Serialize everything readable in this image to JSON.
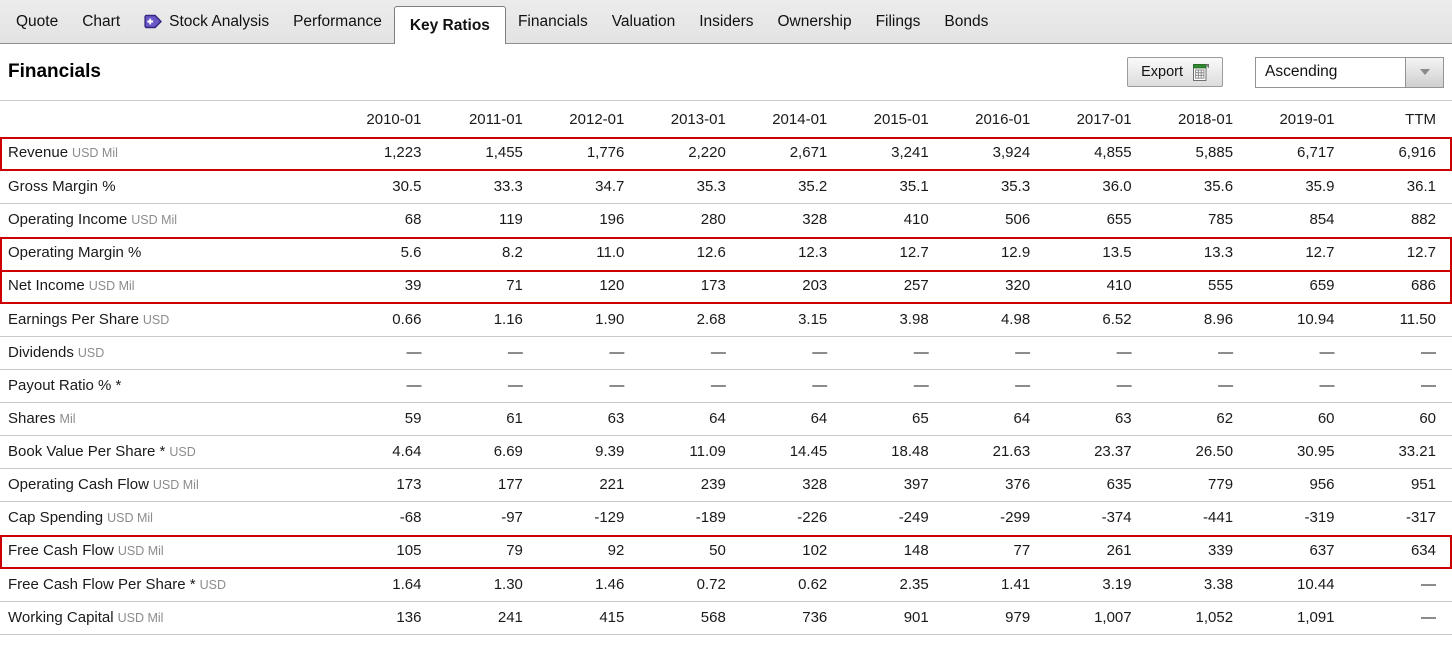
{
  "nav": {
    "tabs": [
      {
        "label": "Quote",
        "active": false
      },
      {
        "label": "Chart",
        "active": false
      },
      {
        "label": "Stock Analysis",
        "active": false,
        "icon": "premium-arrow-icon"
      },
      {
        "label": "Performance",
        "active": false
      },
      {
        "label": "Key Ratios",
        "active": true
      },
      {
        "label": "Financials",
        "active": false
      },
      {
        "label": "Valuation",
        "active": false
      },
      {
        "label": "Insiders",
        "active": false
      },
      {
        "label": "Ownership",
        "active": false
      },
      {
        "label": "Filings",
        "active": false
      },
      {
        "label": "Bonds",
        "active": false
      }
    ]
  },
  "header": {
    "title": "Financials",
    "export_label": "Export",
    "sort_selected": "Ascending"
  },
  "colors": {
    "highlight_border": "#cc0000",
    "grid_line": "#c9c9c9",
    "unit_text": "#8c8c8c",
    "icon_green": "#2f8a2f",
    "icon_purple": "#6a58c6"
  },
  "table": {
    "columns": [
      "2010-01",
      "2011-01",
      "2012-01",
      "2013-01",
      "2014-01",
      "2015-01",
      "2016-01",
      "2017-01",
      "2018-01",
      "2019-01",
      "TTM"
    ],
    "rows": [
      {
        "label": "Revenue",
        "unit": "USD Mil",
        "highlighted": true,
        "values": [
          "1,223",
          "1,455",
          "1,776",
          "2,220",
          "2,671",
          "3,241",
          "3,924",
          "4,855",
          "5,885",
          "6,717",
          "6,916"
        ]
      },
      {
        "label": "Gross Margin %",
        "unit": "",
        "highlighted": false,
        "values": [
          "30.5",
          "33.3",
          "34.7",
          "35.3",
          "35.2",
          "35.1",
          "35.3",
          "36.0",
          "35.6",
          "35.9",
          "36.1"
        ]
      },
      {
        "label": "Operating Income",
        "unit": "USD Mil",
        "highlighted": false,
        "values": [
          "68",
          "119",
          "196",
          "280",
          "328",
          "410",
          "506",
          "655",
          "785",
          "854",
          "882"
        ]
      },
      {
        "label": "Operating Margin %",
        "unit": "",
        "highlighted": true,
        "values": [
          "5.6",
          "8.2",
          "11.0",
          "12.6",
          "12.3",
          "12.7",
          "12.9",
          "13.5",
          "13.3",
          "12.7",
          "12.7"
        ]
      },
      {
        "label": "Net Income",
        "unit": "USD Mil",
        "highlighted": true,
        "values": [
          "39",
          "71",
          "120",
          "173",
          "203",
          "257",
          "320",
          "410",
          "555",
          "659",
          "686"
        ]
      },
      {
        "label": "Earnings Per Share",
        "unit": "USD",
        "highlighted": false,
        "values": [
          "0.66",
          "1.16",
          "1.90",
          "2.68",
          "3.15",
          "3.98",
          "4.98",
          "6.52",
          "8.96",
          "10.94",
          "11.50"
        ]
      },
      {
        "label": "Dividends",
        "unit": "USD",
        "highlighted": false,
        "values": [
          "—",
          "—",
          "—",
          "—",
          "—",
          "—",
          "—",
          "—",
          "—",
          "—",
          "—"
        ]
      },
      {
        "label": "Payout Ratio % *",
        "unit": "",
        "highlighted": false,
        "values": [
          "—",
          "—",
          "—",
          "—",
          "—",
          "—",
          "—",
          "—",
          "—",
          "—",
          "—"
        ]
      },
      {
        "label": "Shares",
        "unit": "Mil",
        "highlighted": false,
        "values": [
          "59",
          "61",
          "63",
          "64",
          "64",
          "65",
          "64",
          "63",
          "62",
          "60",
          "60"
        ]
      },
      {
        "label": "Book Value Per Share *",
        "unit": "USD",
        "highlighted": false,
        "values": [
          "4.64",
          "6.69",
          "9.39",
          "11.09",
          "14.45",
          "18.48",
          "21.63",
          "23.37",
          "26.50",
          "30.95",
          "33.21"
        ]
      },
      {
        "label": "Operating Cash Flow",
        "unit": "USD Mil",
        "highlighted": false,
        "values": [
          "173",
          "177",
          "221",
          "239",
          "328",
          "397",
          "376",
          "635",
          "779",
          "956",
          "951"
        ]
      },
      {
        "label": "Cap Spending",
        "unit": "USD Mil",
        "highlighted": false,
        "values": [
          "-68",
          "-97",
          "-129",
          "-189",
          "-226",
          "-249",
          "-299",
          "-374",
          "-441",
          "-319",
          "-317"
        ]
      },
      {
        "label": "Free Cash Flow",
        "unit": "USD Mil",
        "highlighted": true,
        "values": [
          "105",
          "79",
          "92",
          "50",
          "102",
          "148",
          "77",
          "261",
          "339",
          "637",
          "634"
        ]
      },
      {
        "label": "Free Cash Flow Per Share *",
        "unit": "USD",
        "highlighted": false,
        "values": [
          "1.64",
          "1.30",
          "1.46",
          "0.72",
          "0.62",
          "2.35",
          "1.41",
          "3.19",
          "3.38",
          "10.44",
          "—"
        ]
      },
      {
        "label": "Working Capital",
        "unit": "USD Mil",
        "highlighted": false,
        "values": [
          "136",
          "241",
          "415",
          "568",
          "736",
          "901",
          "979",
          "1,007",
          "1,052",
          "1,091",
          "—"
        ]
      }
    ]
  }
}
